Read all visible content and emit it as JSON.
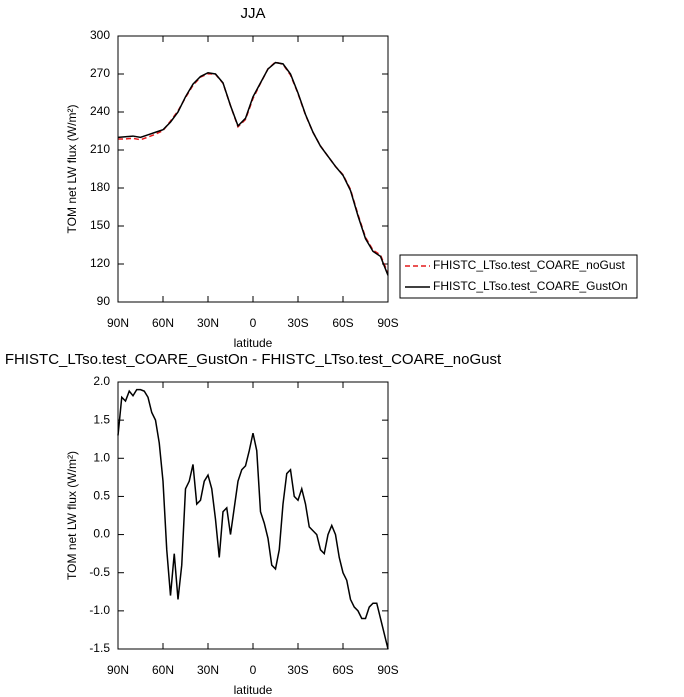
{
  "chart_data": [
    {
      "type": "line",
      "title": "JJA",
      "xlabel": "latitude",
      "ylabel": "TOM net LW flux (W/m²)",
      "x": [
        90,
        85,
        80,
        75,
        70,
        65,
        60,
        55,
        50,
        45,
        40,
        35,
        30,
        25,
        20,
        15,
        10,
        5,
        0,
        -5,
        -10,
        -15,
        -20,
        -25,
        -30,
        -35,
        -40,
        -45,
        -50,
        -55,
        -60,
        -65,
        -70,
        -75,
        -80,
        -85,
        -90
      ],
      "series": [
        {
          "name": "FHISTC_LTso.test_COARE_noGust",
          "color": "#e31a1c",
          "linestyle": "dashed",
          "values": [
            218.7,
            218.75,
            219.18,
            218.1,
            220.2,
            222.5,
            225.3,
            232.8,
            240.85,
            251.4,
            261.08,
            267.55,
            270.22,
            269.8,
            262.7,
            245,
            228.3,
            234.1,
            250.67,
            262.7,
            274.05,
            279.45,
            277.6,
            269.15,
            254.55,
            237.6,
            223.95,
            213.2,
            205,
            197,
            190.5,
            178.85,
            159,
            141.1,
            130.9,
            127.1,
            112.5
          ]
        },
        {
          "name": "FHISTC_LTso.test_COARE_GustOn",
          "color": "#000000",
          "linestyle": "solid",
          "values": [
            220,
            220.5,
            221,
            220,
            222,
            224,
            226,
            232,
            240,
            252,
            262,
            268,
            271,
            270,
            263,
            245,
            229,
            235,
            252,
            263,
            274,
            279,
            278,
            270,
            255,
            238,
            224,
            213,
            205,
            197,
            190,
            178,
            158,
            140,
            130,
            126,
            111
          ]
        }
      ],
      "xlim": [
        90,
        -90
      ],
      "xticks": [
        {
          "value": 90,
          "label": "90N"
        },
        {
          "value": 60,
          "label": "60N"
        },
        {
          "value": 30,
          "label": "30N"
        },
        0,
        {
          "value": -30,
          "label": "30S"
        },
        {
          "value": -60,
          "label": "60S"
        },
        {
          "value": -90,
          "label": "90S"
        }
      ],
      "ylim": [
        90,
        300
      ],
      "yticks": [
        90,
        120,
        150,
        180,
        210,
        240,
        270,
        300
      ],
      "legend": "right"
    },
    {
      "type": "line",
      "title": "FHISTC_LTso.test_COARE_GustOn - FHISTC_LTso.test_COARE_noGust",
      "xlabel": "latitude",
      "ylabel": "TOM net LW flux (W/m²)",
      "x": [
        90,
        87.5,
        85,
        82.5,
        80,
        77.5,
        75,
        72.5,
        70,
        67.5,
        65,
        62.5,
        60,
        57.5,
        55,
        52.5,
        50,
        47.5,
        45,
        42.5,
        40,
        37.5,
        35,
        32.5,
        30,
        27.5,
        25,
        22.5,
        20,
        17.5,
        15,
        12.5,
        10,
        7.5,
        5,
        2.5,
        0,
        -2.5,
        -5,
        -7.5,
        -10,
        -12.5,
        -15,
        -17.5,
        -20,
        -22.5,
        -25,
        -27.5,
        -30,
        -32.5,
        -35,
        -37.5,
        -40,
        -42.5,
        -45,
        -47.5,
        -50,
        -52.5,
        -55,
        -57.5,
        -60,
        -62.5,
        -65,
        -67.5,
        -70,
        -72.5,
        -75,
        -77.5,
        -80,
        -82.5,
        -85,
        -87.5,
        -90
      ],
      "series": [
        {
          "color": "#000000",
          "linestyle": "solid",
          "values": [
            1.3,
            1.8,
            1.75,
            1.88,
            1.82,
            1.9,
            1.9,
            1.88,
            1.8,
            1.6,
            1.5,
            1.2,
            0.7,
            -0.2,
            -0.8,
            -0.25,
            -0.85,
            -0.4,
            0.6,
            0.7,
            0.92,
            0.4,
            0.45,
            0.7,
            0.78,
            0.6,
            0.2,
            -0.3,
            0.3,
            0.35,
            0.0,
            0.35,
            0.7,
            0.85,
            0.9,
            1.1,
            1.33,
            1.1,
            0.3,
            0.15,
            -0.05,
            -0.4,
            -0.45,
            -0.2,
            0.4,
            0.8,
            0.85,
            0.5,
            0.45,
            0.6,
            0.4,
            0.1,
            0.05,
            0.0,
            -0.2,
            -0.25,
            0.0,
            0.12,
            0.0,
            -0.3,
            -0.5,
            -0.6,
            -0.85,
            -0.95,
            -1.0,
            -1.1,
            -1.1,
            -0.95,
            -0.9,
            -0.9,
            -1.1,
            -1.3,
            -1.5
          ]
        }
      ],
      "xlim": [
        90,
        -90
      ],
      "xticks": [
        {
          "value": 90,
          "label": "90N"
        },
        {
          "value": 60,
          "label": "60N"
        },
        {
          "value": 30,
          "label": "30N"
        },
        0,
        {
          "value": -30,
          "label": "30S"
        },
        {
          "value": -60,
          "label": "60S"
        },
        {
          "value": -90,
          "label": "90S"
        }
      ],
      "ylim": [
        -1.5,
        2.0
      ],
      "yticks": [
        -1.5,
        {
          "value": -1.0,
          "label": "-1.0"
        },
        -0.5,
        {
          "value": 0,
          "label": "0.0"
        },
        0.5,
        {
          "value": 1.0,
          "label": "1.0"
        },
        1.5,
        {
          "value": 2.0,
          "label": "2.0"
        }
      ]
    }
  ]
}
